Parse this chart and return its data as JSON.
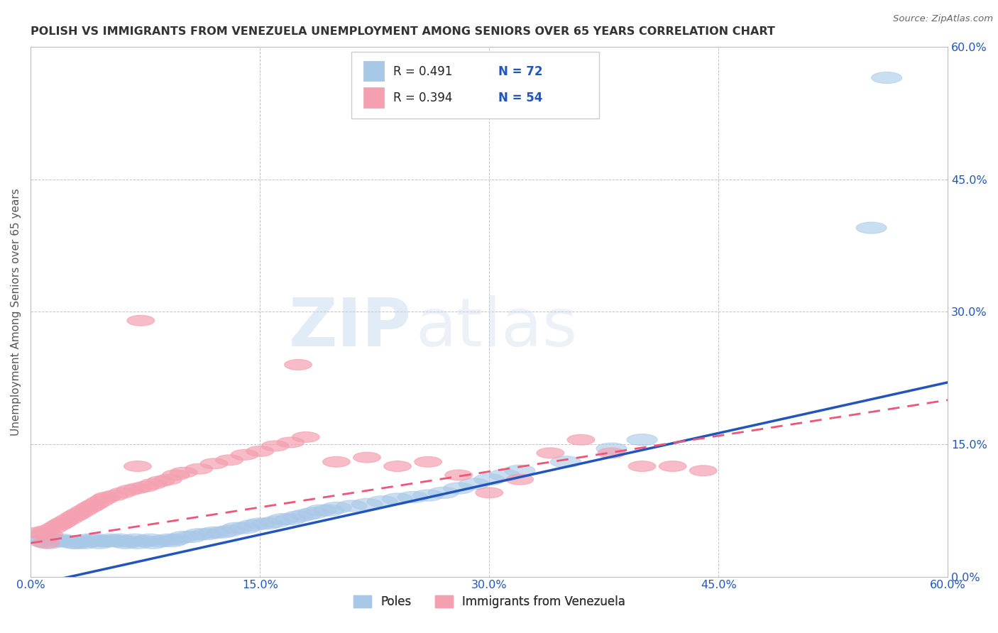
{
  "title": "POLISH VS IMMIGRANTS FROM VENEZUELA UNEMPLOYMENT AMONG SENIORS OVER 65 YEARS CORRELATION CHART",
  "source": "Source: ZipAtlas.com",
  "ylabel": "Unemployment Among Seniors over 65 years",
  "watermark_zip": "ZIP",
  "watermark_atlas": "atlas",
  "xlim": [
    0.0,
    0.6
  ],
  "ylim": [
    0.0,
    0.6
  ],
  "xtick_labels": [
    "0.0%",
    "15.0%",
    "30.0%",
    "45.0%",
    "60.0%"
  ],
  "xtick_vals": [
    0.0,
    0.15,
    0.3,
    0.45,
    0.6
  ],
  "right_ytick_labels": [
    "60.0%",
    "45.0%",
    "30.0%",
    "15.0%",
    "0.0%"
  ],
  "right_ytick_vals": [
    0.6,
    0.45,
    0.3,
    0.15,
    0.0
  ],
  "legend_R1": "R = 0.491",
  "legend_N1": "N = 72",
  "legend_R2": "R = 0.394",
  "legend_N2": "N = 54",
  "blue_color": "#A8C8E8",
  "pink_color": "#F4A0B0",
  "blue_line_color": "#2255BB",
  "pink_line_color": "#EE5577",
  "title_color": "#333333",
  "source_color": "#666666",
  "legend_text_color": "#2255BB",
  "background_color": "#FFFFFF",
  "grid_color": "#BBBBCC",
  "poles_x": [
    0.005,
    0.008,
    0.01,
    0.012,
    0.015,
    0.018,
    0.02,
    0.022,
    0.025,
    0.028,
    0.03,
    0.032,
    0.035,
    0.038,
    0.04,
    0.042,
    0.045,
    0.048,
    0.05,
    0.052,
    0.055,
    0.058,
    0.06,
    0.062,
    0.065,
    0.068,
    0.07,
    0.075,
    0.078,
    0.08,
    0.085,
    0.09,
    0.092,
    0.095,
    0.1,
    0.105,
    0.11,
    0.115,
    0.12,
    0.125,
    0.13,
    0.135,
    0.14,
    0.145,
    0.15,
    0.155,
    0.16,
    0.165,
    0.17,
    0.175,
    0.18,
    0.185,
    0.19,
    0.195,
    0.2,
    0.21,
    0.22,
    0.23,
    0.24,
    0.25,
    0.26,
    0.27,
    0.28,
    0.29,
    0.3,
    0.31,
    0.32,
    0.35,
    0.38,
    0.4,
    0.56,
    0.55
  ],
  "poles_y": [
    0.045,
    0.04,
    0.042,
    0.038,
    0.042,
    0.04,
    0.042,
    0.04,
    0.04,
    0.038,
    0.038,
    0.04,
    0.038,
    0.042,
    0.04,
    0.042,
    0.038,
    0.04,
    0.04,
    0.042,
    0.04,
    0.042,
    0.04,
    0.038,
    0.04,
    0.042,
    0.038,
    0.04,
    0.042,
    0.038,
    0.04,
    0.042,
    0.04,
    0.042,
    0.045,
    0.045,
    0.048,
    0.048,
    0.05,
    0.05,
    0.052,
    0.055,
    0.055,
    0.058,
    0.06,
    0.06,
    0.062,
    0.065,
    0.065,
    0.068,
    0.07,
    0.072,
    0.075,
    0.075,
    0.078,
    0.08,
    0.082,
    0.085,
    0.088,
    0.09,
    0.092,
    0.095,
    0.1,
    0.105,
    0.11,
    0.115,
    0.12,
    0.13,
    0.145,
    0.155,
    0.565,
    0.395
  ],
  "venezuela_x": [
    0.005,
    0.008,
    0.01,
    0.012,
    0.015,
    0.018,
    0.02,
    0.022,
    0.025,
    0.028,
    0.03,
    0.032,
    0.035,
    0.038,
    0.04,
    0.042,
    0.045,
    0.048,
    0.05,
    0.055,
    0.06,
    0.065,
    0.07,
    0.075,
    0.08,
    0.085,
    0.09,
    0.095,
    0.1,
    0.11,
    0.12,
    0.13,
    0.14,
    0.15,
    0.16,
    0.17,
    0.18,
    0.2,
    0.22,
    0.24,
    0.26,
    0.28,
    0.3,
    0.32,
    0.34,
    0.36,
    0.38,
    0.4,
    0.42,
    0.44,
    0.072,
    0.175,
    0.07,
    0.01
  ],
  "venezuela_y": [
    0.05,
    0.048,
    0.052,
    0.048,
    0.055,
    0.058,
    0.06,
    0.062,
    0.065,
    0.068,
    0.07,
    0.072,
    0.075,
    0.078,
    0.08,
    0.082,
    0.085,
    0.088,
    0.09,
    0.092,
    0.095,
    0.098,
    0.1,
    0.102,
    0.105,
    0.108,
    0.11,
    0.115,
    0.118,
    0.122,
    0.128,
    0.132,
    0.138,
    0.142,
    0.148,
    0.152,
    0.158,
    0.13,
    0.135,
    0.125,
    0.13,
    0.115,
    0.095,
    0.11,
    0.14,
    0.155,
    0.14,
    0.125,
    0.125,
    0.12,
    0.29,
    0.24,
    0.125,
    0.038
  ],
  "blue_trend_x0": 0.0,
  "blue_trend_y0": -0.01,
  "blue_trend_x1": 0.6,
  "blue_trend_y1": 0.22,
  "pink_trend_x0": 0.0,
  "pink_trend_y0": 0.038,
  "pink_trend_x1": 0.6,
  "pink_trend_y1": 0.2
}
